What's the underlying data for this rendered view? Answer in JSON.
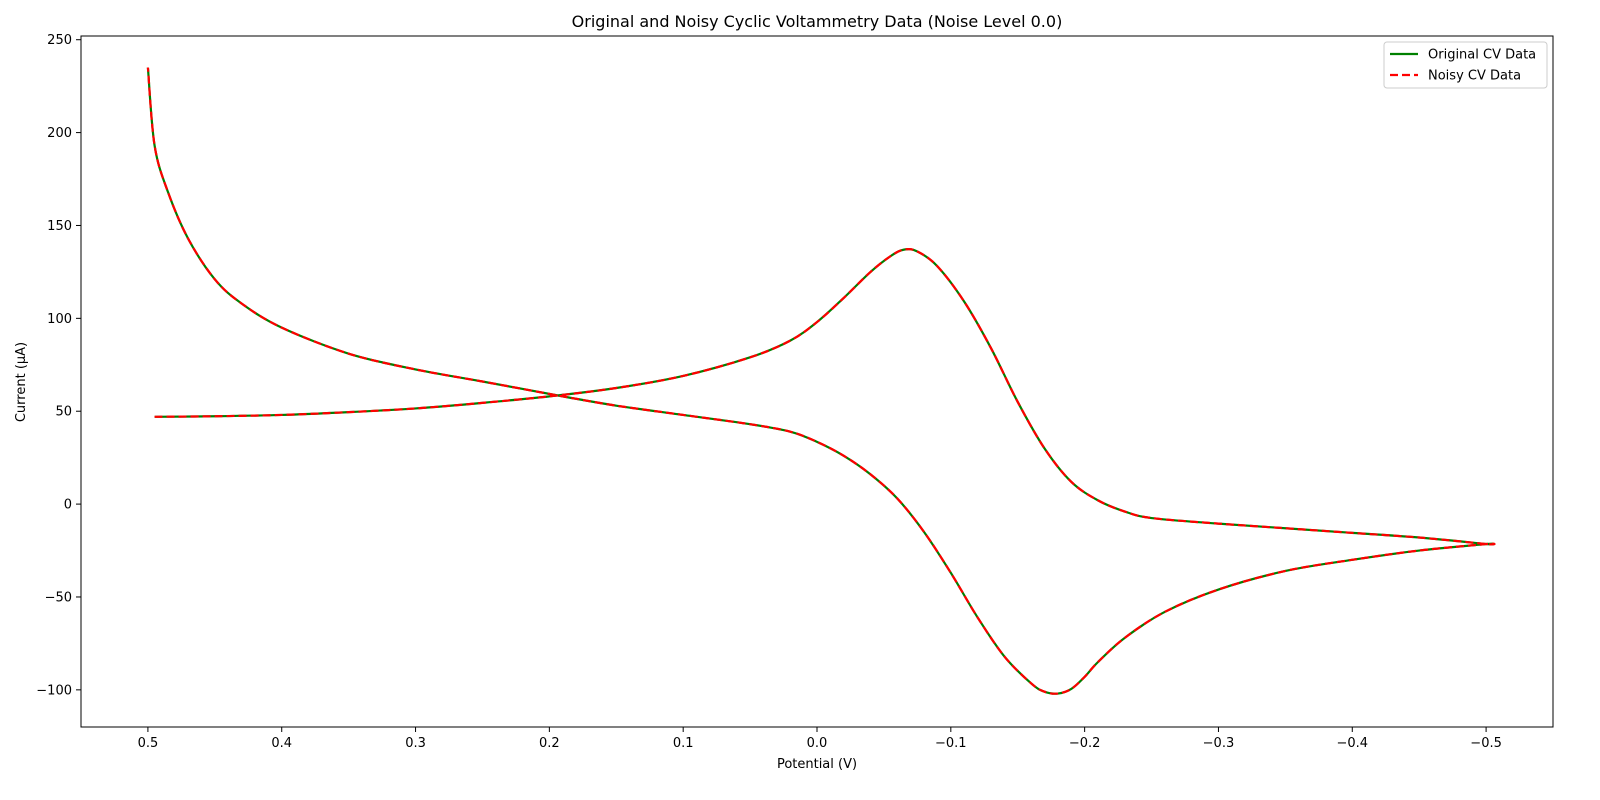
{
  "chart_data": {
    "type": "line",
    "title": "Original and Noisy Cyclic Voltammetry Data (Noise Level 0.0)",
    "xlabel": "Potential (V)",
    "ylabel": "Current (μA)",
    "xlim": [
      0.55,
      -0.55
    ],
    "ylim": [
      -120,
      252
    ],
    "x_reversed": true,
    "grid": false,
    "legend_position": "top-right",
    "xticks": [
      {
        "value": 0.5,
        "label": "0.5"
      },
      {
        "value": 0.4,
        "label": "0.4"
      },
      {
        "value": 0.3,
        "label": "0.3"
      },
      {
        "value": 0.2,
        "label": "0.2"
      },
      {
        "value": 0.1,
        "label": "0.1"
      },
      {
        "value": 0.0,
        "label": "0.0"
      },
      {
        "value": -0.1,
        "label": "−0.1"
      },
      {
        "value": -0.2,
        "label": "−0.2"
      },
      {
        "value": -0.3,
        "label": "−0.3"
      },
      {
        "value": -0.4,
        "label": "−0.4"
      },
      {
        "value": -0.5,
        "label": "−0.5"
      }
    ],
    "yticks": [
      {
        "value": 250,
        "label": "250"
      },
      {
        "value": 200,
        "label": "200"
      },
      {
        "value": 150,
        "label": "150"
      },
      {
        "value": 100,
        "label": "100"
      },
      {
        "value": 50,
        "label": "50"
      },
      {
        "value": 0,
        "label": "0"
      },
      {
        "value": -50,
        "label": "−50"
      },
      {
        "value": -100,
        "label": "−100"
      }
    ],
    "series": [
      {
        "name": "Original CV Data",
        "color": "#008000",
        "dash": "solid",
        "x": [
          0.495,
          0.45,
          0.4,
          0.35,
          0.3,
          0.25,
          0.2,
          0.15,
          0.1,
          0.05,
          0.02,
          0.0,
          -0.02,
          -0.04,
          -0.055,
          -0.065,
          -0.075,
          -0.09,
          -0.11,
          -0.13,
          -0.15,
          -0.17,
          -0.19,
          -0.21,
          -0.23,
          -0.25,
          -0.3,
          -0.35,
          -0.4,
          -0.45,
          -0.5,
          -0.5,
          -0.45,
          -0.4,
          -0.35,
          -0.3,
          -0.26,
          -0.23,
          -0.21,
          -0.2,
          -0.19,
          -0.18,
          -0.17,
          -0.16,
          -0.14,
          -0.12,
          -0.1,
          -0.08,
          -0.06,
          -0.04,
          -0.02,
          0.0,
          0.02,
          0.05,
          0.1,
          0.15,
          0.19,
          0.25,
          0.3,
          0.35,
          0.4,
          0.43,
          0.45,
          0.47,
          0.485,
          0.495,
          0.5
        ],
        "y": [
          47,
          47.3,
          48,
          49.5,
          51.5,
          54.5,
          58,
          62.5,
          69,
          79,
          88,
          98,
          111,
          125,
          133.5,
          137,
          136,
          128,
          109,
          84,
          55,
          30,
          12,
          2,
          -4,
          -7.5,
          -10.5,
          -13,
          -15.5,
          -18,
          -21.5,
          -21.5,
          -25,
          -30,
          -36,
          -46,
          -58,
          -72,
          -85,
          -93,
          -99.5,
          -102,
          -101,
          -96.5,
          -82,
          -61,
          -37,
          -15,
          3,
          16,
          26,
          33.5,
          39,
          43,
          48,
          53,
          58,
          66,
          72.5,
          81,
          95,
          108,
          121,
          143,
          168,
          193,
          235
        ]
      },
      {
        "name": "Noisy CV Data",
        "color": "#ff0000",
        "dash": "dashed",
        "x": [
          0.495,
          0.45,
          0.4,
          0.35,
          0.3,
          0.25,
          0.2,
          0.15,
          0.1,
          0.05,
          0.02,
          0.0,
          -0.02,
          -0.04,
          -0.055,
          -0.065,
          -0.075,
          -0.09,
          -0.11,
          -0.13,
          -0.15,
          -0.17,
          -0.19,
          -0.21,
          -0.23,
          -0.25,
          -0.3,
          -0.35,
          -0.4,
          -0.45,
          -0.5,
          -0.5,
          -0.45,
          -0.4,
          -0.35,
          -0.3,
          -0.26,
          -0.23,
          -0.21,
          -0.2,
          -0.19,
          -0.18,
          -0.17,
          -0.16,
          -0.14,
          -0.12,
          -0.1,
          -0.08,
          -0.06,
          -0.04,
          -0.02,
          0.0,
          0.02,
          0.05,
          0.1,
          0.15,
          0.19,
          0.25,
          0.3,
          0.35,
          0.4,
          0.43,
          0.45,
          0.47,
          0.485,
          0.495,
          0.5
        ],
        "y": [
          47,
          47.3,
          48,
          49.5,
          51.5,
          54.5,
          58,
          62.5,
          69,
          79,
          88,
          98,
          111,
          125,
          133.5,
          137,
          136,
          128,
          109,
          84,
          55,
          30,
          12,
          2,
          -4,
          -7.5,
          -10.5,
          -13,
          -15.5,
          -18,
          -21.5,
          -21.5,
          -25,
          -30,
          -36,
          -46,
          -58,
          -72,
          -85,
          -93,
          -99.5,
          -102,
          -101,
          -96.5,
          -82,
          -61,
          -37,
          -15,
          3,
          16,
          26,
          33.5,
          39,
          43,
          48,
          53,
          58,
          66,
          72.5,
          81,
          95,
          108,
          121,
          143,
          168,
          193,
          235
        ]
      }
    ]
  }
}
